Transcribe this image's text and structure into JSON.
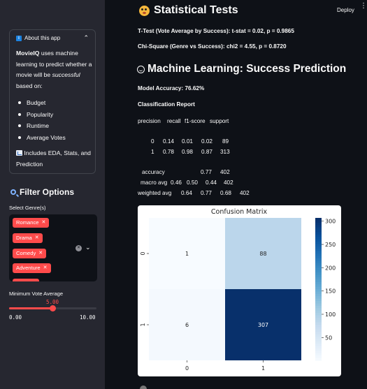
{
  "header": {
    "deploy_label": "Deploy",
    "menu_icon": "more-vertical-icon"
  },
  "sidebar": {
    "about": {
      "title": "About this app",
      "brand": "MovieIQ",
      "intro_part1": " uses machine learning to predict whether a movie will be ",
      "intro_emphasis": "successful",
      "intro_part2": " based on:",
      "items": [
        "Budget",
        "Popularity",
        "Runtime",
        "Average Votes"
      ],
      "footer": "Includes EDA, Stats, and Prediction"
    },
    "filter": {
      "title": "Filter Options",
      "genre_label": "Select Genre(s)",
      "genres": [
        "Romance",
        "Drama",
        "Comedy",
        "Adventure"
      ],
      "vote_label": "Minimum Vote Average",
      "vote_value": "5.00",
      "vote_min": "0.00",
      "vote_max": "10.00",
      "vote_fraction": 0.5
    }
  },
  "main": {
    "stats_title": "Statistical Tests",
    "ttest": "T-Test (Vote Average by Success): t-stat = 0.02, p = 0.9865",
    "chisq": "Chi-Square (Genre vs Success): chi2 = 4.55, p = 0.8720",
    "ml_title": "Machine Learning: Success Prediction",
    "accuracy": "Model Accuracy: 76.62%",
    "report_title": "Classification Report",
    "report": {
      "headers": [
        "precision",
        "recall",
        "f1-score",
        "support"
      ],
      "rows": [
        [
          "0",
          "0.14",
          "0.01",
          "0.02",
          "89"
        ],
        [
          "1",
          "0.78",
          "0.98",
          "0.87",
          "313"
        ]
      ],
      "accuracy_row": [
        "accuracy",
        "0.77",
        "402"
      ],
      "macro_row": [
        "macro avg",
        "0.46",
        "0.50",
        "0.44",
        "402"
      ],
      "weighted_row": [
        "weighted avg",
        "0.64",
        "0.77",
        "0.68",
        "402"
      ]
    }
  },
  "chart_data": {
    "type": "heatmap",
    "title": "Confusion Matrix",
    "x_categories": [
      "0",
      "1"
    ],
    "y_categories": [
      "0",
      "1"
    ],
    "values": [
      [
        1,
        88
      ],
      [
        6,
        307
      ]
    ],
    "colorbar_ticks": [
      50,
      100,
      150,
      200,
      250,
      300
    ],
    "colorbar_range": [
      1,
      307
    ],
    "colormap": "Blues"
  }
}
